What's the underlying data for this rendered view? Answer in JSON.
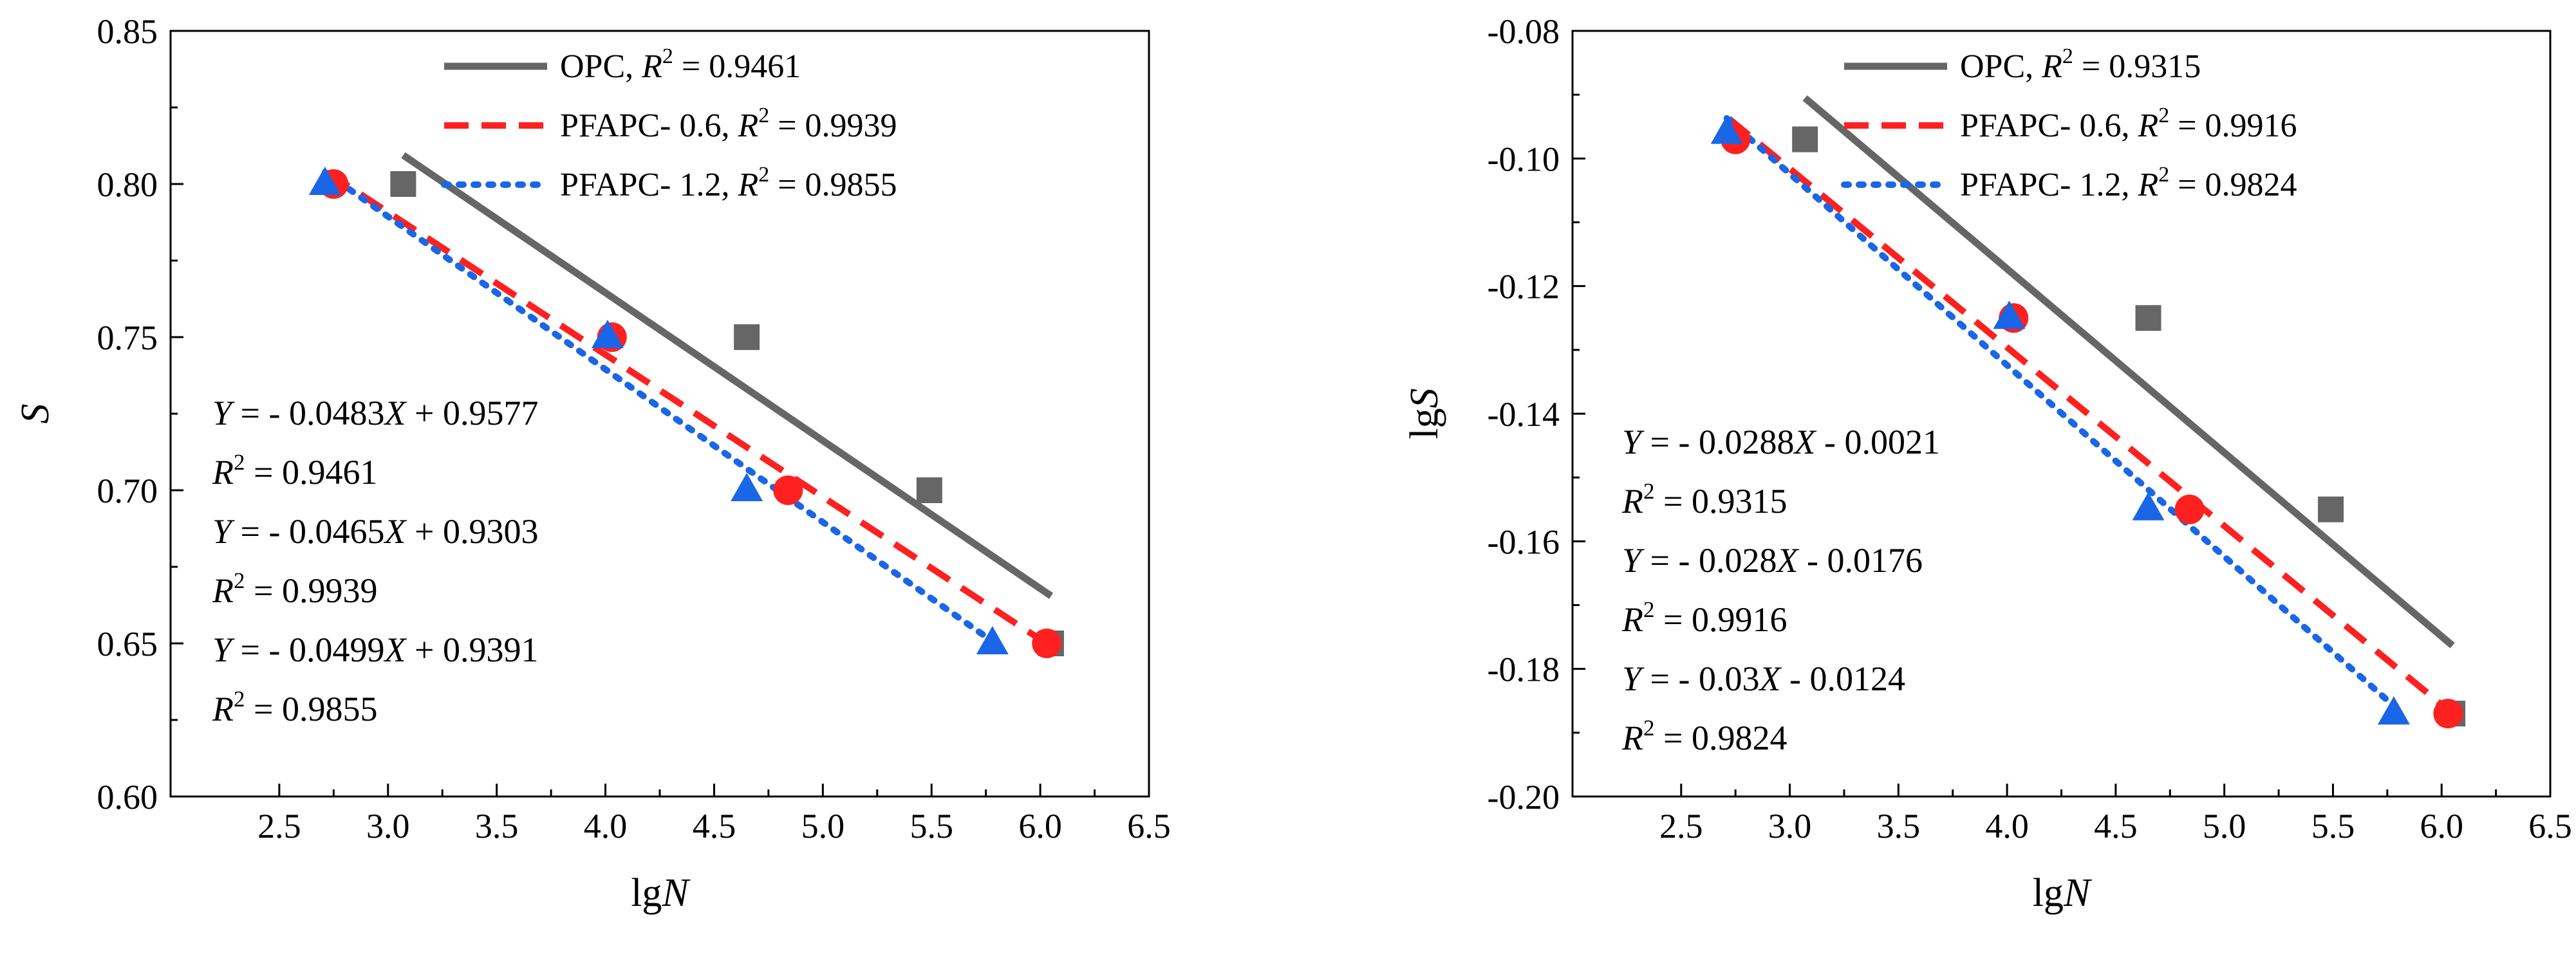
{
  "chart_data": [
    {
      "type": "scatter",
      "xlabel": {
        "base": "lg",
        "var": "N"
      },
      "ylabel": {
        "base": "",
        "var": "S"
      },
      "xlim": [
        2.0,
        6.5
      ],
      "ylim": [
        0.6,
        0.85
      ],
      "xticks": [
        "2.5",
        "3.0",
        "3.5",
        "4.0",
        "4.5",
        "5.0",
        "5.5",
        "6.0",
        "6.5"
      ],
      "xtick_values": [
        2.5,
        3.0,
        3.5,
        4.0,
        4.5,
        5.0,
        5.5,
        6.0,
        6.5
      ],
      "yticks": [
        "0.60",
        "0.65",
        "0.70",
        "0.75",
        "0.80",
        "0.85"
      ],
      "ytick_values": [
        0.6,
        0.65,
        0.7,
        0.75,
        0.8,
        0.85
      ],
      "series": [
        {
          "name": "OPC",
          "r2": "0.9461",
          "color": "#666666",
          "marker": "square",
          "line": "solid",
          "x": [
            3.07,
            4.65,
            5.49,
            6.05
          ],
          "y": [
            0.8,
            0.75,
            0.7,
            0.65
          ],
          "fit": {
            "x": [
              3.07,
              6.05
            ],
            "slope": -0.0483,
            "intercept": 0.9577
          }
        },
        {
          "name": "PFAPC- 0.6",
          "r2": "0.9939",
          "color": "#ff2020",
          "marker": "circle",
          "line": "dash",
          "x": [
            2.75,
            4.03,
            4.84,
            6.03
          ],
          "y": [
            0.8,
            0.75,
            0.7,
            0.65
          ],
          "fit": {
            "x": [
              2.72,
              6.03
            ],
            "slope": -0.0465,
            "intercept": 0.9303
          }
        },
        {
          "name": "PFAPC- 1.2",
          "r2": "0.9855",
          "color": "#1a66e6",
          "marker": "triangle",
          "line": "dot",
          "x": [
            2.71,
            4.01,
            4.65,
            5.78
          ],
          "y": [
            0.8,
            0.75,
            0.7,
            0.65
          ],
          "fit": {
            "x": [
              2.71,
              5.78
            ],
            "slope": -0.0499,
            "intercept": 0.9391
          }
        }
      ],
      "equations": [
        {
          "lhs": "Y",
          "text": " = - 0.0483",
          "var": "X",
          "tail": " + 0.9577"
        },
        {
          "r2": "0.9461"
        },
        {
          "lhs": "Y",
          "text": " = - 0.0465",
          "var": "X",
          "tail": " + 0.9303"
        },
        {
          "r2": "0.9939"
        },
        {
          "lhs": "Y",
          "text": " = - 0.0499",
          "var": "X",
          "tail": " + 0.9391"
        },
        {
          "r2": "0.9855"
        }
      ]
    },
    {
      "type": "scatter",
      "xlabel": {
        "base": "lg",
        "var": "N"
      },
      "ylabel": {
        "base": "lg",
        "var": "S"
      },
      "xlim": [
        2.0,
        6.5
      ],
      "ylim": [
        -0.2,
        -0.08
      ],
      "xticks": [
        "2.5",
        "3.0",
        "3.5",
        "4.0",
        "4.5",
        "5.0",
        "5.5",
        "6.0",
        "6.5"
      ],
      "xtick_values": [
        2.5,
        3.0,
        3.5,
        4.0,
        4.5,
        5.0,
        5.5,
        6.0,
        6.5
      ],
      "yticks": [
        "-0.20",
        "-0.18",
        "-0.16",
        "-0.14",
        "-0.12",
        "-0.10",
        "-0.08"
      ],
      "ytick_values": [
        -0.2,
        -0.18,
        -0.16,
        -0.14,
        -0.12,
        -0.1,
        -0.08
      ],
      "series": [
        {
          "name": "OPC",
          "r2": "0.9315",
          "color": "#666666",
          "marker": "square",
          "line": "solid",
          "x": [
            3.07,
            4.65,
            5.49,
            6.05
          ],
          "y": [
            -0.097,
            -0.125,
            -0.155,
            -0.187
          ],
          "fit": {
            "x": [
              3.07,
              6.05
            ],
            "slope": -0.0288,
            "intercept": -0.0021
          }
        },
        {
          "name": "PFAPC- 0.6",
          "r2": "0.9916",
          "color": "#ff2020",
          "marker": "circle",
          "line": "dash",
          "x": [
            2.75,
            4.03,
            4.84,
            6.03
          ],
          "y": [
            -0.097,
            -0.125,
            -0.155,
            -0.187
          ],
          "fit": {
            "x": [
              2.72,
              6.03
            ],
            "slope": -0.028,
            "intercept": -0.0176
          }
        },
        {
          "name": "PFAPC- 1.2",
          "r2": "0.9824",
          "color": "#1a66e6",
          "marker": "triangle",
          "line": "dot",
          "x": [
            2.71,
            4.01,
            4.65,
            5.78
          ],
          "y": [
            -0.096,
            -0.125,
            -0.155,
            -0.187
          ],
          "fit": {
            "x": [
              2.71,
              5.78
            ],
            "slope": -0.03,
            "intercept": -0.0124
          }
        }
      ],
      "equations": [
        {
          "lhs": "Y",
          "text": " = - 0.0288",
          "var": "X",
          "tail": " -  0.0021"
        },
        {
          "r2": "0.9315"
        },
        {
          "lhs": "Y",
          "text": " = - 0.028",
          "var": "X",
          "tail": " -  0.0176"
        },
        {
          "r2": "0.9916"
        },
        {
          "lhs": "Y",
          "text": " = - 0.03",
          "var": "X",
          "tail": " -  0.0124"
        },
        {
          "r2": "0.9824"
        }
      ]
    }
  ]
}
